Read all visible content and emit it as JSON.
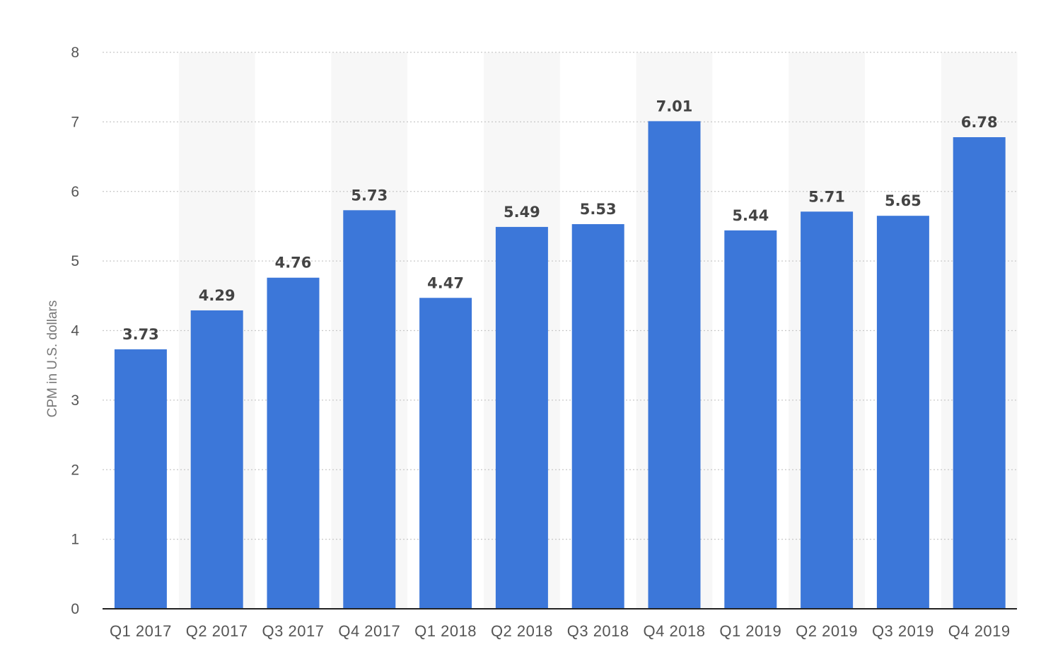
{
  "chart_data": {
    "type": "bar",
    "title": "",
    "xlabel": "",
    "ylabel": "CPM in U.S. dollars",
    "ylim": [
      0,
      8
    ],
    "yticks": [
      0,
      1,
      2,
      3,
      4,
      5,
      6,
      7,
      8
    ],
    "grid": true,
    "legend": "none",
    "categories": [
      "Q1 2017",
      "Q2 2017",
      "Q3 2017",
      "Q4 2017",
      "Q1 2018",
      "Q2 2018",
      "Q3 2018",
      "Q4 2018",
      "Q1 2019",
      "Q2 2019",
      "Q3 2019",
      "Q4 2019"
    ],
    "values": [
      3.73,
      4.29,
      4.76,
      5.73,
      4.47,
      5.49,
      5.53,
      7.01,
      5.44,
      5.71,
      5.65,
      6.78
    ],
    "value_labels": [
      "3.73",
      "4.29",
      "4.76",
      "5.73",
      "4.47",
      "5.49",
      "5.53",
      "7.01",
      "5.44",
      "5.71",
      "5.65",
      "6.78"
    ],
    "colors": {
      "bar": "#3c77d9",
      "alt_band": "#f7f7f7",
      "grid": "#c8c8c8",
      "baseline": "#222222"
    }
  }
}
